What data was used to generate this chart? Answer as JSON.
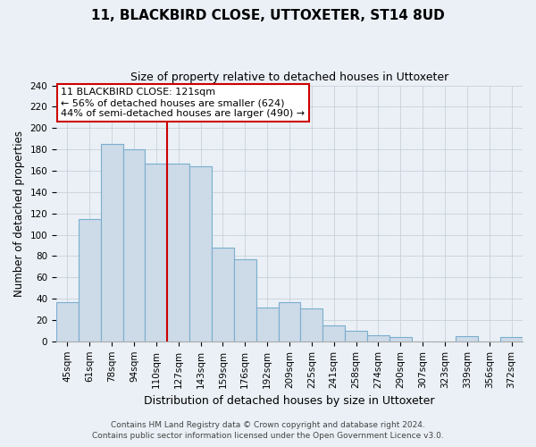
{
  "title": "11, BLACKBIRD CLOSE, UTTOXETER, ST14 8UD",
  "subtitle": "Size of property relative to detached houses in Uttoxeter",
  "xlabel": "Distribution of detached houses by size in Uttoxeter",
  "ylabel": "Number of detached properties",
  "bar_labels": [
    "45sqm",
    "61sqm",
    "78sqm",
    "94sqm",
    "110sqm",
    "127sqm",
    "143sqm",
    "159sqm",
    "176sqm",
    "192sqm",
    "209sqm",
    "225sqm",
    "241sqm",
    "258sqm",
    "274sqm",
    "290sqm",
    "307sqm",
    "323sqm",
    "339sqm",
    "356sqm",
    "372sqm"
  ],
  "bar_values": [
    37,
    115,
    185,
    180,
    167,
    167,
    164,
    88,
    77,
    32,
    37,
    31,
    15,
    10,
    6,
    4,
    0,
    0,
    5,
    0,
    4
  ],
  "bar_color": "#cddae8",
  "bar_edge_color": "#7aaecf",
  "reference_label": "11 BLACKBIRD CLOSE: 121sqm",
  "annotation_line1": "← 56% of detached houses are smaller (624)",
  "annotation_line2": "44% of semi-detached houses are larger (490) →",
  "vline_color": "#cc0000",
  "ylim": [
    0,
    240
  ],
  "yticks": [
    0,
    20,
    40,
    60,
    80,
    100,
    120,
    140,
    160,
    180,
    200,
    220,
    240
  ],
  "footer1": "Contains HM Land Registry data © Crown copyright and database right 2024.",
  "footer2": "Contains public sector information licensed under the Open Government Licence v3.0.",
  "background_color": "#eaf0f6",
  "plot_bg_color": "#eaf0f6",
  "grid_color": "#c8d0da",
  "title_fontsize": 11,
  "subtitle_fontsize": 9,
  "ylabel_fontsize": 8.5,
  "xlabel_fontsize": 9,
  "tick_fontsize": 7.5,
  "annot_fontsize": 8,
  "footer_fontsize": 6.5
}
